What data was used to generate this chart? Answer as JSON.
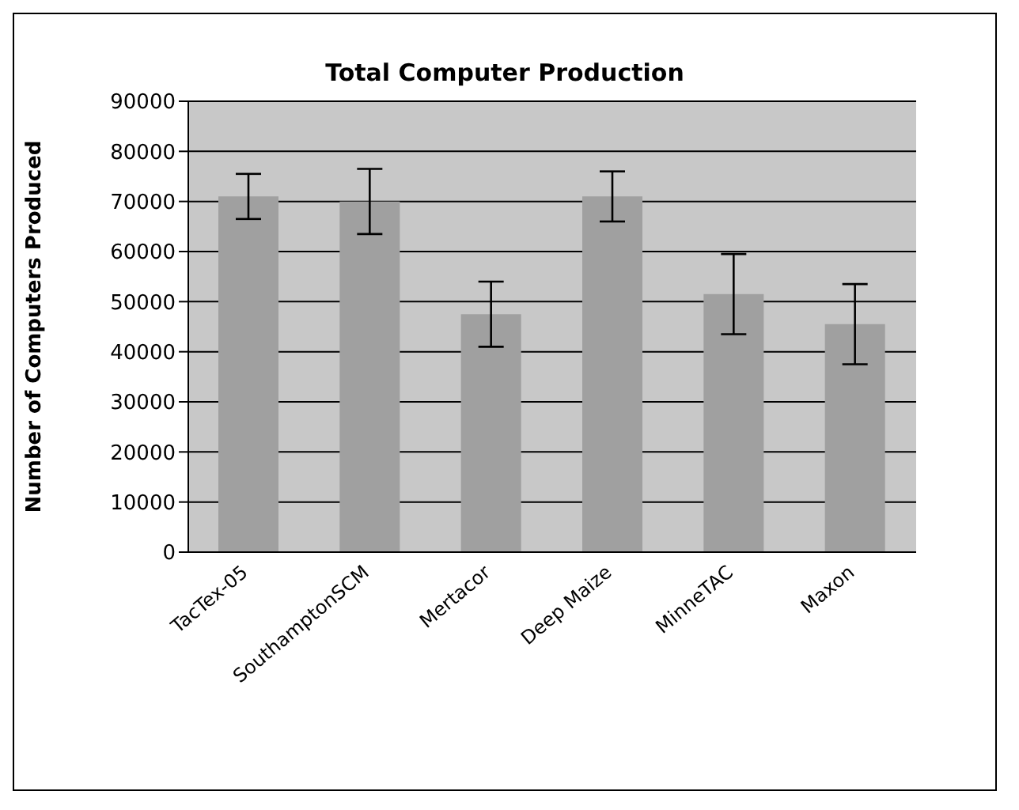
{
  "chart_data": {
    "type": "bar",
    "title": "Total Computer Production",
    "ylabel": "Number of Computers Produced",
    "categories": [
      "TacTex-05",
      "SouthamptonSCM",
      "Mertacor",
      "Deep Maize",
      "MinneTAC",
      "Maxon"
    ],
    "values": [
      71000,
      70000,
      47500,
      71000,
      51500,
      45500
    ],
    "errors": [
      4500,
      6500,
      6500,
      5000,
      8000,
      8000
    ],
    "color": "#a0a0a0",
    "ylim": [
      0,
      90000
    ],
    "yticks": [
      0,
      10000,
      20000,
      30000,
      40000,
      50000,
      60000,
      70000,
      80000,
      90000
    ],
    "grid": "y"
  }
}
